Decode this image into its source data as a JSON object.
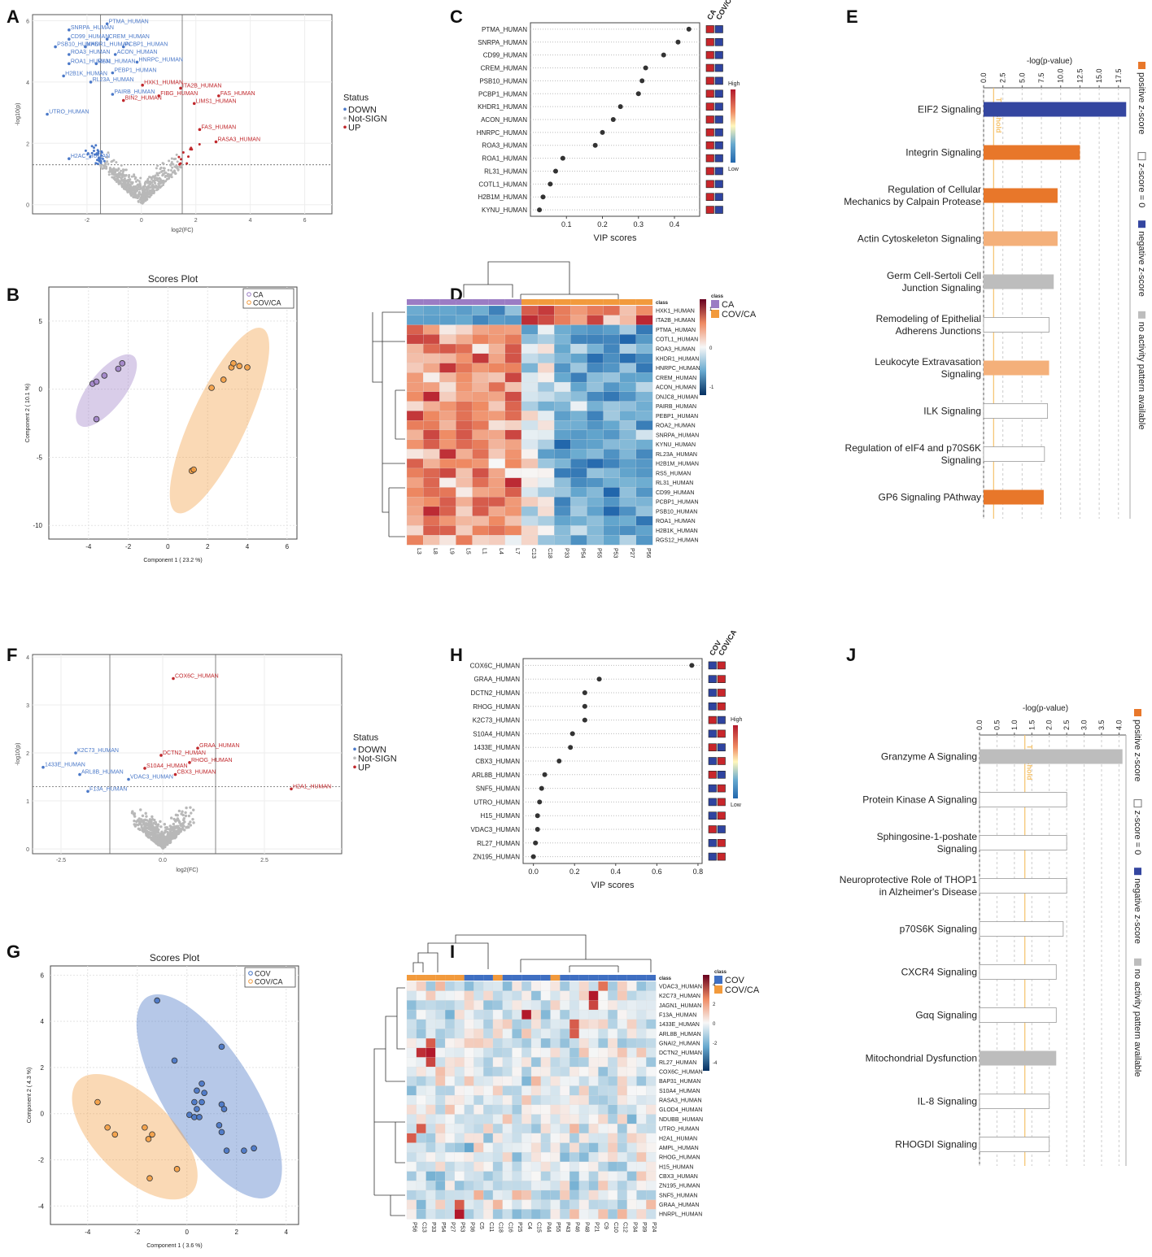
{
  "panel_letters": [
    "A",
    "B",
    "C",
    "D",
    "E",
    "F",
    "G",
    "H",
    "I",
    "J"
  ],
  "colors": {
    "down": "#4a78c8",
    "up": "#c0282c",
    "ns": "#b8b8b8",
    "ca": "#9b7cc4",
    "covca": "#f29a3c",
    "cov": "#3f6fc2",
    "pos": "#e8772a",
    "posLight": "#f4b07a",
    "neg": "#3446a0",
    "none": "#bdbdbd",
    "threshold": "#f5c26b"
  },
  "chart_data": [
    {
      "panel": "A",
      "type": "scatter",
      "subtype": "volcano",
      "xlabel": "log2(FC)",
      "ylabel": "-log10(p)",
      "xlim": [
        -4,
        7
      ],
      "ylim": [
        -0.3,
        6.2
      ],
      "xticks": [
        -2,
        0,
        2,
        4,
        6
      ],
      "yticks": [
        0,
        2,
        4,
        6
      ],
      "legend_title": "Status",
      "legend": [
        "DOWN",
        "Not-SIGN",
        "UP"
      ],
      "labels_down": [
        {
          "t": "PTMA_HUMAN",
          "x": -1.2,
          "y": 5.9
        },
        {
          "t": "SNRPA_HUMAN",
          "x": -2.6,
          "y": 5.7
        },
        {
          "t": "CD99_HUMAN",
          "x": -2.6,
          "y": 5.4
        },
        {
          "t": "CREM_HUMAN",
          "x": -1.2,
          "y": 5.4
        },
        {
          "t": "PSB10_HUMAN",
          "x": -3.1,
          "y": 5.15
        },
        {
          "t": "KHDR1_HUMAN",
          "x": -2.0,
          "y": 5.15
        },
        {
          "t": "PCBP1_HUMAN",
          "x": -0.6,
          "y": 5.15
        },
        {
          "t": "ROA3_HUMAN",
          "x": -2.6,
          "y": 4.9
        },
        {
          "t": "ACON_HUMAN",
          "x": -0.9,
          "y": 4.9
        },
        {
          "t": "ROA1_HUMAN",
          "x": -2.6,
          "y": 4.6
        },
        {
          "t": "RL31_HUMAN",
          "x": -1.6,
          "y": 4.6
        },
        {
          "t": "HNRPC_HUMAN",
          "x": -0.1,
          "y": 4.65
        },
        {
          "t": "PEBP1_HUMAN",
          "x": -1.0,
          "y": 4.3
        },
        {
          "t": "H2B1K_HUMAN",
          "x": -2.8,
          "y": 4.2
        },
        {
          "t": "RL23A_HUMAN",
          "x": -1.8,
          "y": 4.0
        },
        {
          "t": "PAIRB_HUMAN",
          "x": -1.0,
          "y": 3.6
        },
        {
          "t": "UTRO_HUMAN",
          "x": -3.4,
          "y": 2.95
        },
        {
          "t": "H2AC_HUMAN",
          "x": -2.6,
          "y": 1.5
        }
      ],
      "labels_up": [
        {
          "t": "HXK1_HUMAN",
          "x": 0.1,
          "y": 3.9
        },
        {
          "t": "ITA2B_HUMAN",
          "x": 1.5,
          "y": 3.8
        },
        {
          "t": "FIBG_HUMAN",
          "x": 0.7,
          "y": 3.55
        },
        {
          "t": "FAS_HUMAN",
          "x": 2.9,
          "y": 3.55
        },
        {
          "t": "BIN2_HUMAN",
          "x": -0.6,
          "y": 3.4
        },
        {
          "t": "LIMS1_HUMAN",
          "x": 2.0,
          "y": 3.3
        },
        {
          "t": "FAS_HUMAN",
          "x": 2.2,
          "y": 2.45
        },
        {
          "t": "RASA3_HUMAN",
          "x": 2.8,
          "y": 2.05
        }
      ]
    },
    {
      "panel": "B",
      "type": "scatter",
      "subtype": "pls-da scores",
      "title": "Scores Plot",
      "xlabel": "Component 1 ( 23.2 %)",
      "ylabel": "Component 2 ( 10.1 %)",
      "xlim": [
        -6,
        6.5
      ],
      "ylim": [
        -11,
        7.5
      ],
      "xticks": [
        -4,
        -2,
        0,
        2,
        4,
        6
      ],
      "yticks": [
        -10,
        -5,
        0,
        5
      ],
      "series": [
        {
          "name": "CA",
          "points": [
            [
              -3.8,
              0.4
            ],
            [
              -3.6,
              0.55
            ],
            [
              -3.2,
              1.0
            ],
            [
              -2.5,
              1.5
            ],
            [
              -2.3,
              1.9
            ],
            [
              -3.6,
              -2.2
            ]
          ]
        },
        {
          "name": "COV/CA",
          "points": [
            [
              2.2,
              0.1
            ],
            [
              2.8,
              0.7
            ],
            [
              3.2,
              1.6
            ],
            [
              3.3,
              1.9
            ],
            [
              3.6,
              1.7
            ],
            [
              4.0,
              1.6
            ],
            [
              1.2,
              -6.0
            ],
            [
              1.3,
              -5.9
            ]
          ]
        }
      ]
    },
    {
      "panel": "C",
      "type": "scatter",
      "subtype": "vip dot plot",
      "xlabel": "VIP scores",
      "xlim": [
        0,
        0.47
      ],
      "xticks": [
        0.1,
        0.2,
        0.3,
        0.4
      ],
      "classes": [
        "CA",
        "COV/CA"
      ],
      "scale_labels": [
        "High",
        "Low"
      ],
      "categories": [
        "PTMA_HUMAN",
        "SNRPA_HUMAN",
        "CD99_HUMAN",
        "CREM_HUMAN",
        "PSB10_HUMAN",
        "PCBP1_HUMAN",
        "KHDR1_HUMAN",
        "ACON_HUMAN",
        "HNRPC_HUMAN",
        "ROA3_HUMAN",
        "ROA1_HUMAN",
        "RL31_HUMAN",
        "COTL1_HUMAN",
        "H2B1M_HUMAN",
        "KYNU_HUMAN"
      ],
      "values": [
        0.44,
        0.41,
        0.37,
        0.32,
        0.31,
        0.3,
        0.25,
        0.23,
        0.2,
        0.18,
        0.09,
        0.07,
        0.055,
        0.035,
        0.025
      ]
    },
    {
      "panel": "D",
      "type": "heatmap",
      "legend_title": "class",
      "legend": [
        "CA",
        "COV/CA"
      ],
      "scale_ticks": [
        "1",
        "0",
        "-1"
      ],
      "columns": [
        "L3",
        "L8",
        "L9",
        "L5",
        "L1",
        "L4",
        "L7",
        "C13",
        "C18",
        "P33",
        "P54",
        "P55",
        "P53",
        "P27",
        "P56"
      ],
      "rows": [
        "HXK1_HUMAN",
        "ITA2B_HUMAN",
        "PTMA_HUMAN",
        "COTL1_HUMAN",
        "ROA3_HUMAN",
        "KHDR1_HUMAN",
        "HNRPC_HUMAN",
        "CREM_HUMAN",
        "ACON_HUMAN",
        "DNJC8_HUMAN",
        "PAIRB_HUMAN",
        "PEBP1_HUMAN",
        "ROA2_HUMAN",
        "SNRPA_HUMAN",
        "KYNU_HUMAN",
        "RL23A_HUMAN",
        "H2B1M_HUMAN",
        "RS5_HUMAN",
        "RL31_HUMAN",
        "CD99_HUMAN",
        "PCBP1_HUMAN",
        "PSB10_HUMAN",
        "ROA1_HUMAN",
        "H2B1K_HUMAN",
        "RGS12_HUMAN"
      ]
    },
    {
      "panel": "E",
      "type": "bar",
      "orientation": "horizontal",
      "xlabel": "-log(p-value)",
      "xlim": [
        0,
        19
      ],
      "xticks": [
        "0.0",
        "2.5",
        "5.0",
        "7.5",
        "10.0",
        "12.5",
        "15.0",
        "17.5"
      ],
      "threshold_label": "Threshold",
      "threshold": 1.3,
      "legend": [
        "positive z-score",
        "z-score = 0",
        "negative z-score",
        "no activity pattern available"
      ],
      "categories": [
        "EIF2 Signaling",
        "Integrin Signaling",
        "Regulation of Cellular Mechanics by Calpain Protease",
        "Actin Cytoskeleton Signaling",
        "Germ Cell-Sertoli Cell Junction Signaling",
        "Remodeling of Epithelial Adherens Junctions",
        "Leukocyte Extravasation Signaling",
        "ILK Signaling",
        "Regulation of eIF4 and p70S6K Signaling",
        "GP6 Signaling PAthway"
      ],
      "values": [
        18.5,
        12.5,
        9.6,
        9.6,
        9.1,
        8.5,
        8.5,
        8.3,
        7.9,
        7.8
      ],
      "status": [
        "neg",
        "pos",
        "pos",
        "posLight",
        "none",
        "zero",
        "posLight",
        "zero",
        "zero",
        "pos"
      ]
    },
    {
      "panel": "F",
      "type": "scatter",
      "subtype": "volcano",
      "xlabel": "log2(FC)",
      "ylabel": "-log10(p)",
      "xlim": [
        -3.2,
        4.4
      ],
      "ylim": [
        -0.1,
        4.05
      ],
      "xticks": [
        "-2.5",
        "0.0",
        "2.5"
      ],
      "yticks": [
        0,
        1,
        2,
        3,
        4
      ],
      "legend_title": "Status",
      "legend": [
        "DOWN",
        "Not-SIGN",
        "UP"
      ],
      "labels_down": [
        {
          "t": "K2C73_HUMAN",
          "x": -2.1,
          "y": 2.0
        },
        {
          "t": "1433E_HUMAN",
          "x": -2.9,
          "y": 1.7
        },
        {
          "t": "ARL8B_HUMAN",
          "x": -2.0,
          "y": 1.55
        },
        {
          "t": "VDAC3_HUMAN",
          "x": -0.8,
          "y": 1.45
        },
        {
          "t": "F13A_HUMAN",
          "x": -1.8,
          "y": 1.2
        }
      ],
      "labels_up": [
        {
          "t": "COX6C_HUMAN",
          "x": 0.3,
          "y": 3.55
        },
        {
          "t": "GRAA_HUMAN",
          "x": 0.9,
          "y": 2.1
        },
        {
          "t": "DCTN2_HUMAN",
          "x": 0.0,
          "y": 1.95
        },
        {
          "t": "RHOG_HUMAN",
          "x": 0.7,
          "y": 1.8
        },
        {
          "t": "S10A4_HUMAN",
          "x": -0.4,
          "y": 1.68
        },
        {
          "t": "CBX3_HUMAN",
          "x": 0.35,
          "y": 1.55
        },
        {
          "t": "H2A1_HUMAN",
          "x": 3.2,
          "y": 1.25
        }
      ]
    },
    {
      "panel": "G",
      "type": "scatter",
      "subtype": "pls-da scores",
      "title": "Scores Plot",
      "xlabel": "Component 1 ( 3.6 %)",
      "ylabel": "Component 2 ( 4.3 %)",
      "xlim": [
        -5.5,
        4.5
      ],
      "ylim": [
        -4.8,
        6.4
      ],
      "xticks": [
        -4,
        -2,
        0,
        2,
        4
      ],
      "yticks": [
        -4,
        -2,
        0,
        2,
        4,
        6
      ],
      "series": [
        {
          "name": "COV",
          "points": [
            [
              -1.2,
              4.9
            ],
            [
              -0.5,
              2.3
            ],
            [
              1.4,
              2.9
            ],
            [
              0.6,
              1.3
            ],
            [
              0.4,
              1.0
            ],
            [
              0.7,
              0.9
            ],
            [
              0.3,
              0.5
            ],
            [
              0.6,
              0.5
            ],
            [
              0.4,
              0.2
            ],
            [
              1.4,
              0.4
            ],
            [
              1.5,
              0.2
            ],
            [
              0.1,
              -0.05
            ],
            [
              0.3,
              -0.15
            ],
            [
              0.5,
              -0.15
            ],
            [
              1.3,
              -0.5
            ],
            [
              1.4,
              -0.8
            ],
            [
              1.6,
              -1.6
            ],
            [
              2.3,
              -1.6
            ],
            [
              2.7,
              -1.5
            ]
          ]
        },
        {
          "name": "COV/CA",
          "points": [
            [
              -3.6,
              0.5
            ],
            [
              -3.2,
              -0.6
            ],
            [
              -2.9,
              -0.9
            ],
            [
              -1.7,
              -0.6
            ],
            [
              -1.4,
              -0.9
            ],
            [
              -1.55,
              -1.1
            ],
            [
              -0.4,
              -2.4
            ],
            [
              -1.5,
              -2.8
            ]
          ]
        }
      ]
    },
    {
      "panel": "H",
      "type": "scatter",
      "subtype": "vip dot plot",
      "xlabel": "VIP scores",
      "xlim": [
        -0.05,
        0.82
      ],
      "xticks": [
        "0.0",
        "0.2",
        "0.4",
        "0.6",
        "0.8"
      ],
      "classes": [
        "COV",
        "COV/CA"
      ],
      "scale_labels": [
        "High",
        "Low"
      ],
      "categories": [
        "COX6C_HUMAN",
        "GRAA_HUMAN",
        "DCTN2_HUMAN",
        "RHOG_HUMAN",
        "K2C73_HUMAN",
        "S10A4_HUMAN",
        "1433E_HUMAN",
        "CBX3_HUMAN",
        "ARL8B_HUMAN",
        "SNF5_HUMAN",
        "UTRO_HUMAN",
        "H15_HUMAN",
        "VDAC3_HUMAN",
        "RL27_HUMAN",
        "ZN195_HUMAN"
      ],
      "values": [
        0.77,
        0.32,
        0.25,
        0.25,
        0.25,
        0.19,
        0.18,
        0.125,
        0.055,
        0.04,
        0.03,
        0.02,
        0.02,
        0.01,
        0.0
      ]
    },
    {
      "panel": "I",
      "type": "heatmap",
      "legend_title": "class",
      "legend": [
        "COV",
        "COV/CA"
      ],
      "scale_ticks": [
        "4",
        "2",
        "0",
        "-2",
        "-4"
      ],
      "columns": [
        "P56",
        "C13",
        "P33",
        "P54",
        "P27",
        "P53",
        "P36",
        "C5",
        "C11",
        "C18",
        "C16",
        "P25",
        "C4",
        "C15",
        "P44",
        "P55",
        "P43",
        "P46",
        "P48",
        "P21",
        "C9",
        "C10",
        "C12",
        "P34",
        "P39",
        "P24"
      ],
      "rows": [
        "VDAC3_HUMAN",
        "K2C73_HUMAN",
        "JAGN1_HUMAN",
        "F13A_HUMAN",
        "1433E_HUMAN",
        "ARL8B_HUMAN",
        "GNAI2_HUMAN",
        "DCTN2_HUMAN",
        "RL27_HUMAN",
        "COX6C_HUMAN",
        "BAP31_HUMAN",
        "S10A4_HUMAN",
        "RASA3_HUMAN",
        "GLOD4_HUMAN",
        "NDUBB_HUMAN",
        "UTRO_HUMAN",
        "H2A1_HUMAN",
        "AMPL_HUMAN",
        "RHOG_HUMAN",
        "H15_HUMAN",
        "CBX3_HUMAN",
        "ZN195_HUMAN",
        "SNF5_HUMAN",
        "GRAA_HUMAN",
        "HNRPL_HUMAN"
      ]
    },
    {
      "panel": "J",
      "type": "bar",
      "orientation": "horizontal",
      "xlabel": "-log(p-value)",
      "xlim": [
        0,
        4.2
      ],
      "xticks": [
        "0.0",
        "0.5",
        "1.0",
        "1.5",
        "2.0",
        "2.5",
        "3.0",
        "3.5",
        "4.0"
      ],
      "threshold_label": "Threshold",
      "threshold": 1.3,
      "legend": [
        "positive z-score",
        "z-score = 0",
        "negative z-score",
        "no activity pattern available"
      ],
      "categories": [
        "Granzyme A Signaling",
        "Protein Kinase A Signaling",
        "Sphingosine-1-poshate Signaling",
        "Neuroprotective Role of THOP1 in Alzheimer's Disease",
        "p70S6K Signaling",
        "CXCR4 Signaling",
        "Gαq Signaling",
        "Mitochondrial Dysfunction",
        "IL-8 Signaling",
        "RHOGDI Signaling"
      ],
      "values": [
        4.1,
        2.5,
        2.5,
        2.5,
        2.4,
        2.2,
        2.2,
        2.2,
        2.0,
        2.0
      ],
      "status": [
        "none",
        "zero",
        "zero",
        "zero",
        "zero",
        "zero",
        "zero",
        "none",
        "zero",
        "zero"
      ]
    }
  ]
}
